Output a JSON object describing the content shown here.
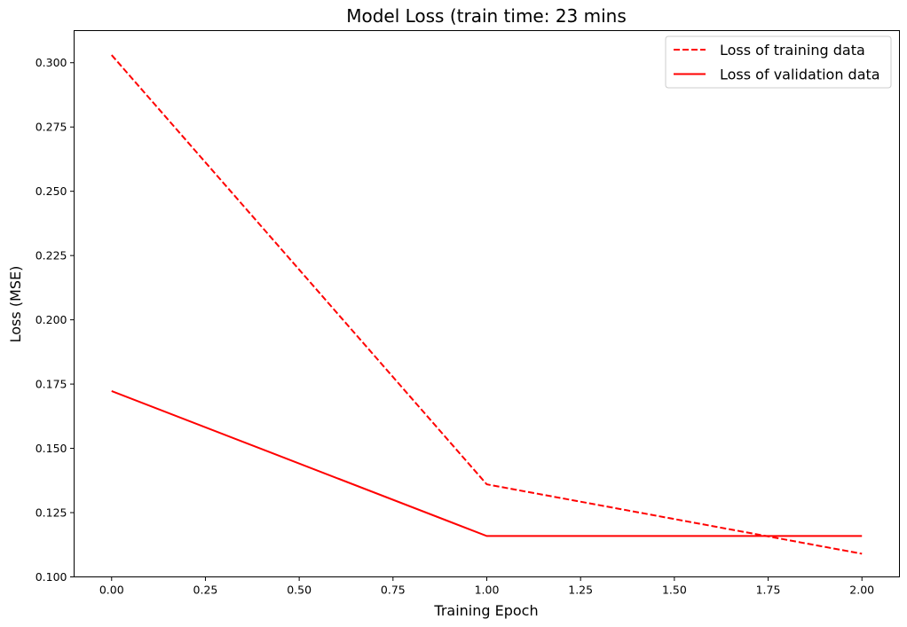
{
  "chart_data": {
    "type": "line",
    "title": "Model Loss (train time: 23 mins",
    "xlabel": "Training Epoch",
    "ylabel": "Loss (MSE)",
    "xlim": [
      -0.1,
      2.1
    ],
    "ylim": [
      0.1,
      0.3125
    ],
    "xticks": [
      0.0,
      0.25,
      0.5,
      0.75,
      1.0,
      1.25,
      1.5,
      1.75,
      2.0
    ],
    "xtick_labels": [
      "0.00",
      "0.25",
      "0.50",
      "0.75",
      "1.00",
      "1.25",
      "1.50",
      "1.75",
      "2.00"
    ],
    "yticks": [
      0.1,
      0.125,
      0.15,
      0.175,
      0.2,
      0.225,
      0.25,
      0.275,
      0.3
    ],
    "ytick_labels": [
      "0.100",
      "0.125",
      "0.150",
      "0.175",
      "0.200",
      "0.225",
      "0.250",
      "0.275",
      "0.300"
    ],
    "grid": false,
    "legend_position": "top-right",
    "series": [
      {
        "name": "Loss of training data",
        "x": [
          0,
          1,
          2
        ],
        "values": [
          0.303,
          0.136,
          0.109
        ],
        "color": "#ff0000",
        "style": "dashed"
      },
      {
        "name": "Loss of validation data",
        "x": [
          0,
          1,
          2
        ],
        "values": [
          0.1723,
          0.1159,
          0.1159
        ],
        "color": "#ff0000",
        "style": "solid"
      }
    ]
  }
}
